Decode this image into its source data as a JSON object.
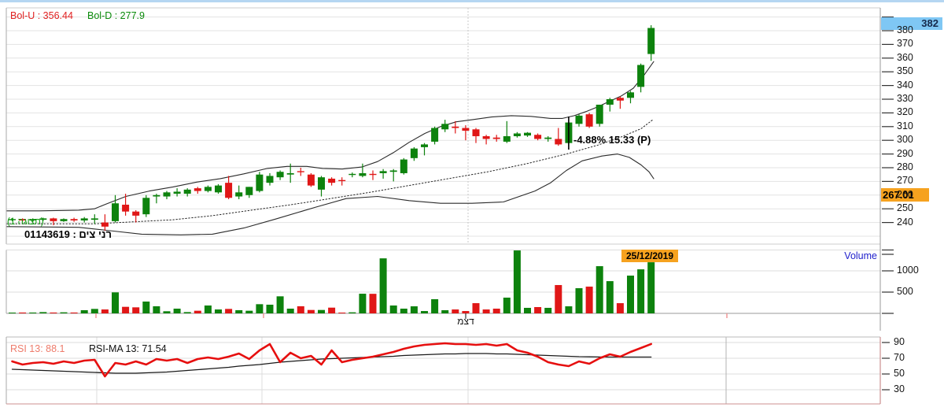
{
  "colors": {
    "up": "#0d820d",
    "down": "#e01717",
    "band": "#2b2b2b",
    "mid_band": "#222222",
    "grid": "#e3e3e3",
    "axis_line": "#999999",
    "tick": "#333333",
    "rsi_line": "#e60f0f",
    "rsi_ma": "#1a1a1a",
    "badge_orange": "#f6a21f",
    "badge_blue": "#68bdf2",
    "volume_label_blue": "#2121cc",
    "month_tick_pink": "#f09090",
    "rsi_border_pink": "#cc8f8f"
  },
  "main_chart": {
    "bol_u_label": "Bol-U : 356.44",
    "bol_d_label": "Bol-D : 277.9",
    "display_label": "(תצוגה 1)",
    "security_label": "רני צים : 01143619",
    "annotation": "-4.88% 15.33 (P)",
    "last_price_label": "382",
    "crosshair_price_label": "267.01",
    "month_label": "דצמ"
  },
  "volume_panel": {
    "label": "Volume",
    "date_label": "25/12/2019"
  },
  "rsi_panel": {
    "rsi_label": "RSI 13: 88.1",
    "rsi_ma_label": "RSI-MA 13: 71.54"
  },
  "chart_data": {
    "type": "candlestick",
    "title": "רני צים : 01143619",
    "legend": [
      "Bol-U : 356.44",
      "Bol-D : 277.9",
      "RSI 13: 88.1",
      "RSI-MA 13: 71.54"
    ],
    "ylim": [
      230,
      392
    ],
    "price_ticks": [
      380,
      370,
      360,
      350,
      340,
      330,
      320,
      310,
      300,
      290,
      280,
      270,
      260,
      250,
      240
    ],
    "volume_ticks": [
      1000,
      500
    ],
    "rsi_ticks": [
      90,
      70,
      50,
      30
    ],
    "last_close": 382,
    "crosshair_price": 267.01,
    "crosshair_date": "25/12/2019",
    "selected_index": 54,
    "candles": [
      [
        242,
        243,
        241,
        242.5
      ],
      [
        242.5,
        243,
        240.5,
        241.5
      ],
      [
        241.5,
        243,
        240.5,
        242.5
      ],
      [
        242,
        243.5,
        241,
        243
      ],
      [
        243,
        243.5,
        238,
        241
      ],
      [
        241,
        243,
        240.5,
        242.5
      ],
      [
        242.5,
        243.5,
        240.5,
        241.5
      ],
      [
        241.5,
        244,
        240,
        243
      ],
      [
        242,
        246,
        239,
        243
      ],
      [
        240,
        246,
        234,
        237
      ],
      [
        241,
        260,
        240,
        254
      ],
      [
        253,
        261,
        245,
        248
      ],
      [
        248,
        249,
        240,
        245
      ],
      [
        246,
        260,
        244,
        258
      ],
      [
        259,
        261,
        254,
        260
      ],
      [
        259,
        263,
        257,
        262
      ],
      [
        261,
        265,
        259,
        262.5
      ],
      [
        261,
        265,
        259,
        264
      ],
      [
        265,
        266,
        261,
        263
      ],
      [
        263,
        267,
        262,
        266
      ],
      [
        262,
        268,
        261,
        267
      ],
      [
        269,
        274,
        257,
        258
      ],
      [
        259,
        267,
        257,
        262
      ],
      [
        260,
        266,
        258,
        266
      ],
      [
        263,
        277,
        262,
        275
      ],
      [
        269,
        276,
        267,
        274
      ],
      [
        273,
        278,
        271,
        277
      ],
      [
        275,
        283,
        269,
        276
      ],
      [
        277.5,
        280,
        274,
        277
      ],
      [
        275,
        276,
        266,
        267
      ],
      [
        264,
        274,
        259,
        273
      ],
      [
        272,
        273,
        267,
        269
      ],
      [
        271,
        273,
        267,
        270.5
      ],
      [
        275,
        276.5,
        273,
        275.5
      ],
      [
        274,
        283,
        273,
        276
      ],
      [
        275.5,
        278,
        271,
        275
      ],
      [
        276,
        279,
        272,
        277.5
      ],
      [
        277,
        279,
        270,
        278
      ],
      [
        276,
        287,
        275,
        286
      ],
      [
        287,
        295,
        285,
        294
      ],
      [
        295,
        298,
        289,
        297
      ],
      [
        299,
        310,
        297,
        309
      ],
      [
        308,
        315,
        306,
        312
      ],
      [
        310,
        314,
        305,
        309
      ],
      [
        309,
        311,
        300,
        307
      ],
      [
        308,
        309,
        298,
        303
      ],
      [
        303,
        304,
        297,
        301
      ],
      [
        302,
        304,
        299,
        301
      ],
      [
        299,
        314,
        298,
        303
      ],
      [
        303,
        306,
        302,
        305
      ],
      [
        303.5,
        306,
        302.5,
        305.5
      ],
      [
        304,
        305,
        300,
        301
      ],
      [
        301,
        303,
        299,
        302
      ],
      [
        301,
        309,
        296,
        297
      ],
      [
        298,
        313,
        296,
        313
      ],
      [
        312,
        319,
        310,
        318
      ],
      [
        319,
        320,
        309,
        310
      ],
      [
        312,
        326,
        310,
        326
      ],
      [
        326,
        331,
        321,
        330
      ],
      [
        331,
        332,
        323,
        329
      ],
      [
        331,
        336,
        327,
        335
      ],
      [
        339,
        356,
        335,
        355
      ],
      [
        363,
        384,
        358,
        382
      ]
    ],
    "volumes": [
      15,
      20,
      20,
      30,
      20,
      25,
      20,
      75,
      105,
      92,
      494,
      154,
      142,
      278,
      167,
      50,
      111,
      30,
      62,
      185,
      92,
      105,
      75,
      62,
      216,
      204,
      401,
      111,
      167,
      80,
      80,
      135,
      18,
      25,
      462,
      460,
      1294,
      185,
      111,
      166,
      55,
      333,
      74,
      92,
      55,
      240,
      92,
      111,
      370,
      1480,
      130,
      148,
      130,
      666,
      166,
      592,
      629,
      1110,
      758,
      240,
      888,
      1036,
      1202
    ],
    "rsi": [
      66,
      62,
      64,
      65,
      63,
      66,
      64,
      67,
      68,
      47,
      64,
      62,
      66,
      62,
      69,
      67,
      69,
      64,
      69,
      71,
      69,
      72,
      76,
      69,
      80,
      88,
      65,
      77,
      70,
      73,
      62,
      80,
      65,
      68,
      70,
      72,
      75,
      78,
      82,
      85,
      87,
      88,
      89,
      88,
      88,
      87,
      88,
      86,
      88,
      80,
      77,
      72,
      65,
      62,
      60,
      66,
      63,
      70,
      75,
      72,
      78,
      83,
      88.1
    ],
    "rsi_ma": [
      56,
      55.5,
      55,
      54.5,
      54,
      53.5,
      53,
      52.5,
      52,
      51.5,
      51,
      51,
      51,
      51.5,
      52,
      52.5,
      53.5,
      54.5,
      55.5,
      56.5,
      57.5,
      58.5,
      60,
      61,
      62,
      63.5,
      65,
      66,
      67,
      68,
      69,
      69.5,
      70,
      70.5,
      71,
      71.5,
      72,
      72.5,
      73.5,
      74,
      74.5,
      75,
      75.5,
      75.5,
      76,
      76,
      76,
      75.5,
      75.5,
      75,
      74.5,
      74,
      73.5,
      73,
      72.5,
      72,
      71.8,
      71.6,
      71.5,
      71.5,
      71.5,
      71.5,
      71.54
    ],
    "bollinger": {
      "upper": [
        [
          8,
          248.5
        ],
        [
          50,
          248.5
        ],
        [
          100,
          249
        ],
        [
          120,
          250
        ],
        [
          135,
          253.5
        ],
        [
          160,
          259
        ],
        [
          190,
          263
        ],
        [
          220,
          266
        ],
        [
          250,
          269.5
        ],
        [
          280,
          272
        ],
        [
          310,
          275.5
        ],
        [
          340,
          279.5
        ],
        [
          365,
          281
        ],
        [
          390,
          281
        ],
        [
          410,
          279.5
        ],
        [
          435,
          279
        ],
        [
          460,
          280.5
        ],
        [
          480,
          284.5
        ],
        [
          500,
          291
        ],
        [
          520,
          298.5
        ],
        [
          540,
          305
        ],
        [
          560,
          310
        ],
        [
          580,
          313.5
        ],
        [
          600,
          315
        ],
        [
          625,
          317
        ],
        [
          650,
          318
        ],
        [
          675,
          317.5
        ],
        [
          700,
          316
        ],
        [
          715,
          316
        ],
        [
          730,
          318
        ],
        [
          745,
          321
        ],
        [
          760,
          324.5
        ],
        [
          775,
          328.5
        ],
        [
          790,
          332.5
        ],
        [
          805,
          338
        ],
        [
          818,
          347
        ],
        [
          831,
          357.5
        ]
      ],
      "lower": [
        [
          8,
          237
        ],
        [
          100,
          236.5
        ],
        [
          140,
          234
        ],
        [
          180,
          231.5
        ],
        [
          230,
          231
        ],
        [
          270,
          231.5
        ],
        [
          310,
          236
        ],
        [
          350,
          242.5
        ],
        [
          400,
          251
        ],
        [
          440,
          257.5
        ],
        [
          480,
          259
        ],
        [
          520,
          256
        ],
        [
          560,
          254
        ],
        [
          600,
          254
        ],
        [
          640,
          255
        ],
        [
          680,
          263
        ],
        [
          700,
          269
        ],
        [
          720,
          278
        ],
        [
          740,
          285
        ],
        [
          765,
          288.5
        ],
        [
          785,
          290
        ],
        [
          800,
          287.5
        ],
        [
          815,
          282
        ],
        [
          825,
          277
        ],
        [
          831,
          272
        ]
      ],
      "mid": [
        [
          8,
          239
        ],
        [
          120,
          239
        ],
        [
          170,
          240.5
        ],
        [
          220,
          242
        ],
        [
          270,
          245
        ],
        [
          320,
          249
        ],
        [
          370,
          253
        ],
        [
          420,
          257.5
        ],
        [
          470,
          262
        ],
        [
          520,
          267
        ],
        [
          570,
          272
        ],
        [
          620,
          277
        ],
        [
          670,
          283
        ],
        [
          720,
          290
        ],
        [
          760,
          296.5
        ],
        [
          790,
          302.5
        ],
        [
          815,
          308.5
        ],
        [
          831,
          315.5
        ]
      ]
    }
  }
}
